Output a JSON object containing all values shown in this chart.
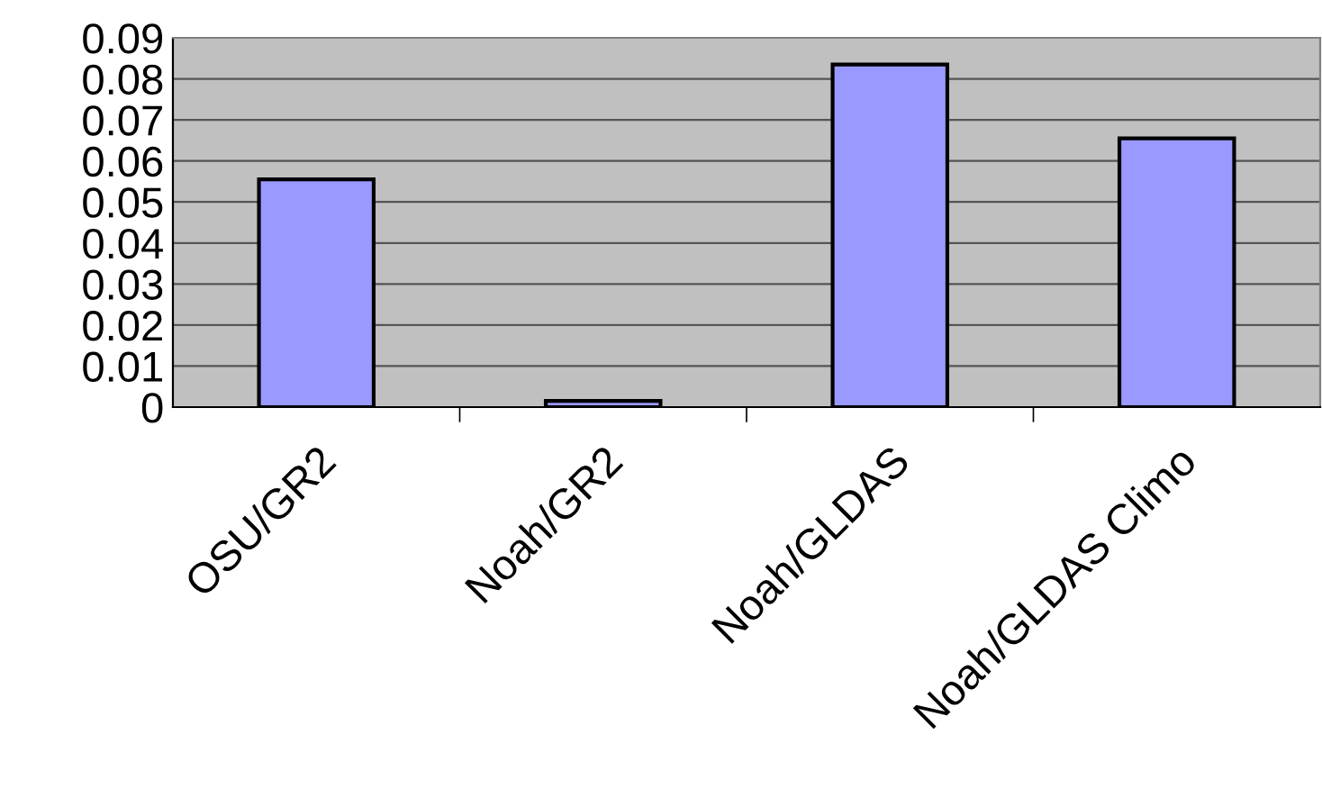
{
  "chart_data": {
    "type": "bar",
    "categories": [
      "OSU/GR2",
      "Noah/GR2",
      "Noah/GLDAS",
      "Noah/GLDAS Climo"
    ],
    "series": [
      {
        "color": "#9999ff",
        "values": [
          0.0555,
          0.0015,
          0.0835,
          0.0655
        ]
      }
    ],
    "ylim": [
      0,
      0.09
    ],
    "yticks": [
      0,
      0.01,
      0.02,
      0.03,
      0.04,
      0.05,
      0.06,
      0.07,
      0.08,
      0.09
    ],
    "grid": "y"
  }
}
